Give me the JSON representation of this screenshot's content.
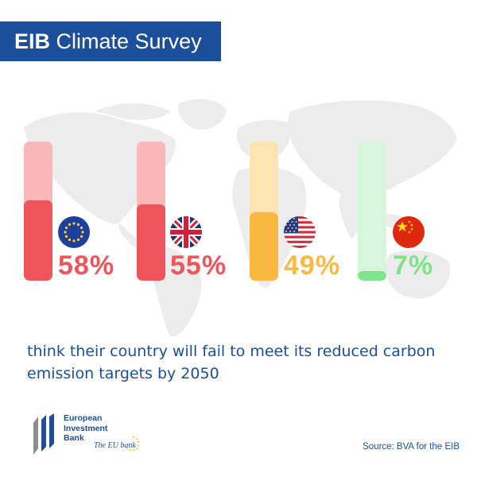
{
  "header": {
    "title_bold": "EIB",
    "title_rest": "Climate Survey",
    "background": "#1b4e9b"
  },
  "chart_data": {
    "type": "bar",
    "categories": [
      "European Union",
      "United Kingdom",
      "United States",
      "China"
    ],
    "flags": [
      "eu-flag-icon",
      "uk-flag-icon",
      "us-flag-icon",
      "china-flag-icon"
    ],
    "values": [
      58,
      55,
      49,
      7
    ],
    "data_labels": [
      "58%",
      "55%",
      "49%",
      "7%"
    ],
    "colors": [
      "#f0545b",
      "#f0545b",
      "#f9b840",
      "#7ee389"
    ],
    "track_colors": [
      "#fbb8bb",
      "#fbb8bb",
      "#fde3b0",
      "#d7f7dd"
    ],
    "ylim": [
      0,
      100
    ],
    "title": "",
    "xlabel": "",
    "ylabel": ""
  },
  "caption": "think their country will fail to meet its reduced carbon emission targets by 2050",
  "logo": {
    "line1": "European",
    "line2": "Investment",
    "line3": "Bank",
    "tagline": "The EU bank"
  },
  "source": "Source: BVA for the EIB"
}
